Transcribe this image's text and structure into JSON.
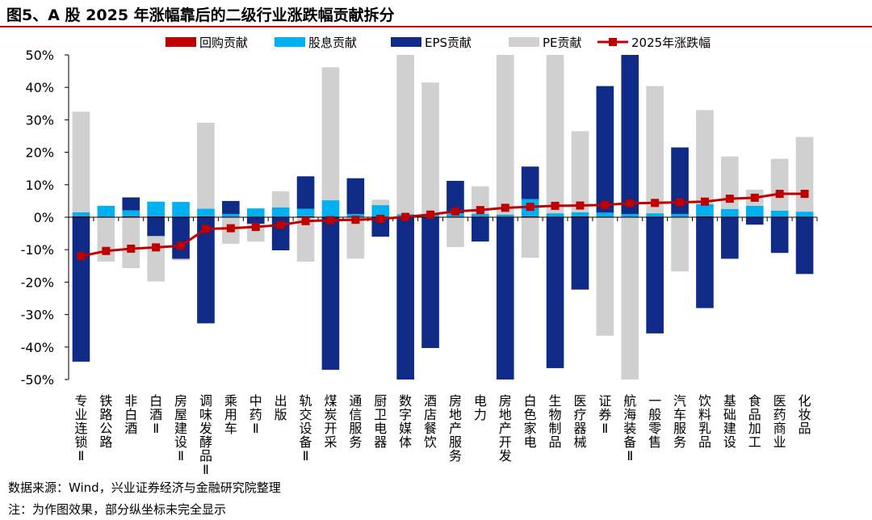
{
  "header": {
    "title": "图5、A 股 2025 年涨幅靠后的二级行业涨跌幅贡献拆分"
  },
  "footer": {
    "source": "数据来源：Wind，兴业证券经济与金融研究院整理",
    "note": "注：为作图效果，部分纵坐标未完全显示"
  },
  "colors": {
    "buyback": "#c00000",
    "dividend": "#00b0f0",
    "eps": "#0f2a87",
    "pe": "#d0d0d0",
    "total": "#c00000"
  },
  "chart_data": {
    "type": "bar",
    "stacked": true,
    "title": "",
    "ylim": [
      -50,
      50
    ],
    "yticks": [
      "-50%",
      "-40%",
      "-30%",
      "-20%",
      "-10%",
      "0%",
      "10%",
      "20%",
      "30%",
      "40%",
      "50%"
    ],
    "categories": [
      "专业连锁Ⅱ",
      "铁路公路",
      "非白酒",
      "白酒Ⅱ",
      "房屋建设Ⅱ",
      "调味发酵品Ⅱ",
      "乘用车",
      "中药Ⅱ",
      "出版",
      "轨交设备Ⅱ",
      "煤炭开采",
      "通信服务",
      "厨卫电器",
      "数字媒体",
      "酒店餐饮",
      "房地产服务",
      "电力",
      "房地产开发",
      "白色家电",
      "生物制品",
      "医疗器械",
      "证券Ⅱ",
      "航海装备Ⅱ",
      "一般零售",
      "汽车服务",
      "饮料乳品",
      "基础建设",
      "食品加工",
      "医药商业",
      "化妆品"
    ],
    "legend": [
      "回购贡献",
      "股息贡献",
      "EPS贡献",
      "PE贡献",
      "2025年涨跌幅"
    ],
    "legend_position": "top",
    "series": [
      {
        "name": "回购贡献",
        "kind": "bar",
        "values": [
          0.3,
          0.2,
          0.3,
          0.3,
          0.2,
          0.3,
          0.2,
          0.2,
          0.2,
          0.3,
          0.2,
          0.2,
          0.2,
          0.3,
          0.2,
          0.2,
          0.2,
          0.2,
          0.3,
          0.2,
          0.3,
          0.2,
          0.2,
          0.2,
          0.2,
          0.3,
          0.2,
          0.2,
          0.2,
          0.2
        ]
      },
      {
        "name": "股息贡献",
        "kind": "bar",
        "values": [
          1.2,
          3.3,
          1.8,
          4.5,
          4.5,
          2.3,
          0.8,
          2.5,
          2.8,
          2.3,
          5.0,
          0.8,
          3.5,
          0.6,
          0.8,
          1.0,
          0.8,
          0.6,
          5.3,
          1.0,
          1.2,
          1.2,
          0.8,
          1.0,
          0.8,
          3.7,
          2.3,
          3.3,
          1.8,
          1.5
        ]
      },
      {
        "name": "EPS贡献",
        "kind": "bar",
        "values": [
          -44.5,
          0,
          4.0,
          -5.8,
          -12.8,
          -32.7,
          4.0,
          -2.0,
          -10.2,
          10.0,
          -47.0,
          11.0,
          -6.0,
          -50.5,
          -40.3,
          10.0,
          -7.5,
          -50.5,
          10.0,
          -46.5,
          -22.3,
          39.0,
          49.5,
          -35.8,
          20.5,
          -28.0,
          -12.8,
          -2.3,
          -11.0,
          -17.5
        ]
      },
      {
        "name": "PE贡献",
        "kind": "bar",
        "values": [
          31.0,
          -13.7,
          -15.7,
          -14.0,
          -0.5,
          26.5,
          -8.2,
          -5.5,
          5.0,
          -13.7,
          41.0,
          -12.8,
          1.7,
          50.0,
          40.5,
          -9.2,
          8.5,
          50.0,
          -12.5,
          50.0,
          25.0,
          -36.5,
          -50.5,
          39.2,
          -16.7,
          29.0,
          16.2,
          5.0,
          16.0,
          23.0
        ]
      },
      {
        "name": "2025年涨跌幅",
        "kind": "line",
        "values": [
          -12.0,
          -10.4,
          -9.7,
          -9.3,
          -8.8,
          -3.6,
          -3.4,
          -3.0,
          -2.4,
          -1.2,
          -0.9,
          -0.8,
          -0.5,
          0.1,
          0.8,
          1.8,
          2.2,
          2.9,
          3.2,
          3.5,
          3.6,
          3.8,
          4.3,
          4.4,
          4.6,
          4.8,
          5.7,
          6.0,
          7.2,
          7.2
        ]
      }
    ]
  }
}
